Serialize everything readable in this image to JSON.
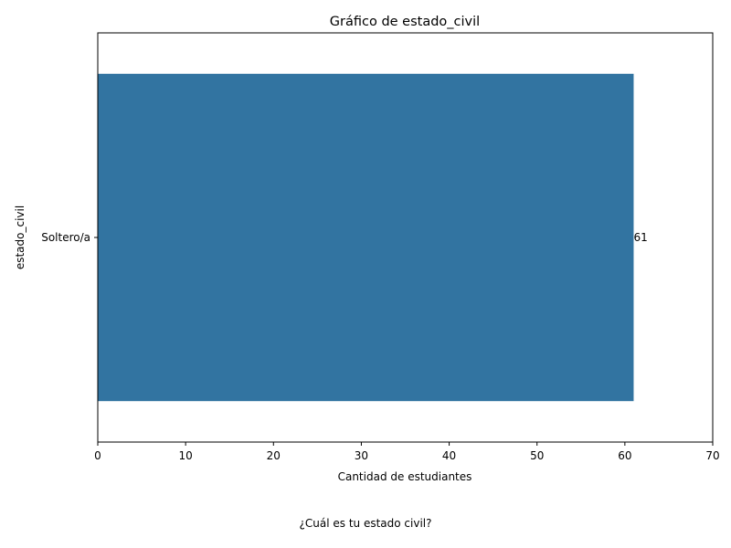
{
  "chart_data": {
    "type": "bar",
    "orientation": "horizontal",
    "title": "Gráfico de estado_civil",
    "xlabel": "Cantidad de estudiantes",
    "ylabel": "estado_civil",
    "categories": [
      "Soltero/a"
    ],
    "values": [
      61
    ],
    "data_labels": [
      "61"
    ],
    "xlim": [
      0,
      70
    ],
    "x_ticks": [
      0,
      10,
      20,
      30,
      40,
      50,
      60,
      70
    ],
    "grid": false,
    "bar_color": "#3274a1"
  },
  "caption": "¿Cuál es tu estado civil?"
}
